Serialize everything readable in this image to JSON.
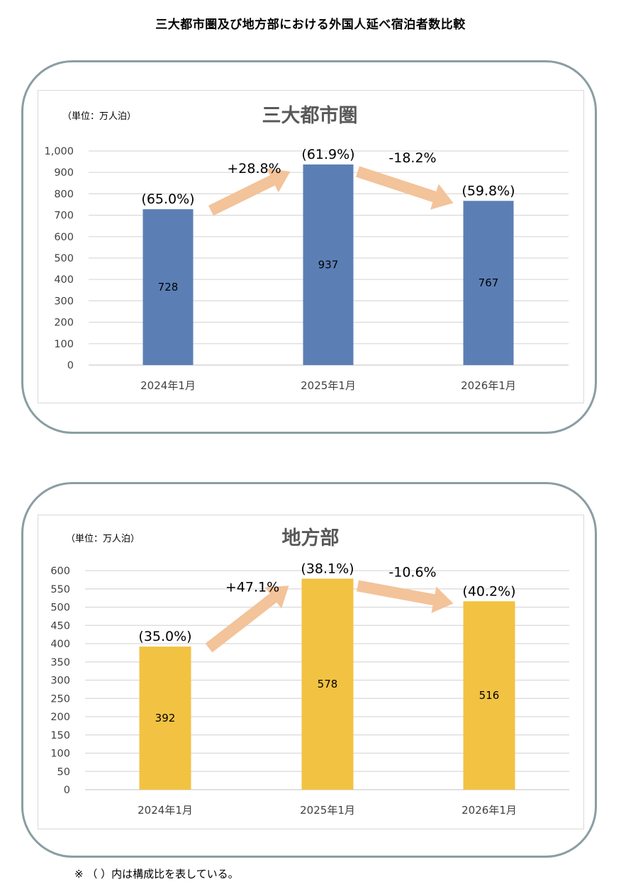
{
  "title": "三大都市圏及び地方部における外国人延べ宿泊者数比較",
  "footnote": "※ （ ）内は構成比を表している。",
  "colors": {
    "metro_bar": "#5b7fb5",
    "regional_bar": "#f2c242",
    "arrow": "#f3c39a",
    "panel_border": "#8a9ea3"
  },
  "chart_data": [
    {
      "type": "bar",
      "title": "三大都市圏",
      "unit": "（単位：万人泊）",
      "categories": [
        "2024年1月",
        "2025年1月",
        "2026年1月"
      ],
      "values": [
        728,
        937,
        767
      ],
      "value_labels": [
        "728",
        "937",
        "767"
      ],
      "shares": [
        "(65.0%)",
        "(61.9%)",
        "(59.8%)"
      ],
      "changes": [
        "+28.8%",
        "-18.2%"
      ],
      "ylim": [
        0,
        1000
      ],
      "yticks": [
        0,
        100,
        200,
        300,
        400,
        500,
        600,
        700,
        800,
        900,
        1000
      ],
      "ytick_labels": [
        "0",
        "100",
        "200",
        "300",
        "400",
        "500",
        "600",
        "700",
        "800",
        "900",
        "1,000"
      ],
      "grid": true
    },
    {
      "type": "bar",
      "title": "地方部",
      "unit": "（単位：万人泊）",
      "categories": [
        "2024年1月",
        "2025年1月",
        "2026年1月"
      ],
      "values": [
        392,
        578,
        516
      ],
      "value_labels": [
        "392",
        "578",
        "516"
      ],
      "shares": [
        "(35.0%)",
        "(38.1%)",
        "(40.2%)"
      ],
      "changes": [
        "+47.1%",
        "-10.6%"
      ],
      "ylim": [
        0,
        600
      ],
      "yticks": [
        0,
        50,
        100,
        150,
        200,
        250,
        300,
        350,
        400,
        450,
        500,
        550,
        600
      ],
      "ytick_labels": [
        "0",
        "50",
        "100",
        "150",
        "200",
        "250",
        "300",
        "350",
        "400",
        "450",
        "500",
        "550",
        "600"
      ],
      "grid": true
    }
  ]
}
